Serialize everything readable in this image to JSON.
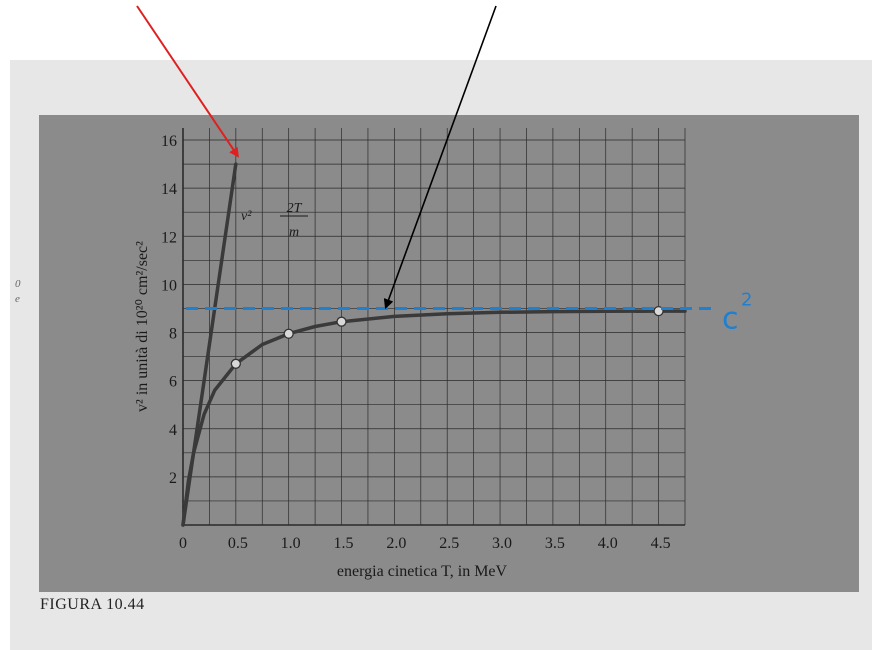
{
  "figure": {
    "caption": "FIGURA 10.44",
    "margin_marks": [
      "0",
      "e"
    ]
  },
  "colors": {
    "panel": "#8b8b8b",
    "curve": "#3a3a3a",
    "grid": "#2a2a2a",
    "red_arrow": "#e02020",
    "black_arrow": "#000000",
    "c2_line": "#1f7fd0"
  },
  "chart_data": {
    "type": "line",
    "title": "",
    "xlabel": "energia cinetica T, in MeV",
    "ylabel": "v² in unità di 10²⁰ cm²/sec²",
    "xlim": [
      0,
      4.75
    ],
    "ylim": [
      0,
      16.5
    ],
    "x_ticks": [
      0,
      0.5,
      1.0,
      1.5,
      2.0,
      2.5,
      3.0,
      3.5,
      4.0,
      4.5
    ],
    "x_tick_labels": [
      "0",
      "0.5",
      "1.0",
      "1.5",
      "2.0",
      "2.5",
      "3.0",
      "3.5",
      "4.0",
      "4.5"
    ],
    "y_ticks": [
      2,
      4,
      6,
      8,
      10,
      12,
      14,
      16
    ],
    "y_tick_labels": [
      "2",
      "4",
      "6",
      "8",
      "10",
      "12",
      "14",
      "16"
    ],
    "grid": true,
    "series": [
      {
        "label_main": "v²",
        "label_num": "2T",
        "label_den": "m",
        "x": [
          0,
          0.5
        ],
        "y": [
          0,
          15.0
        ]
      },
      {
        "x": [
          0,
          0.05,
          0.1,
          0.2,
          0.3,
          0.5,
          0.75,
          1.0,
          1.25,
          1.5,
          2.0,
          2.5,
          3.0,
          3.5,
          4.0,
          4.5,
          4.75
        ],
        "y": [
          0,
          1.8,
          3.0,
          4.6,
          5.6,
          6.7,
          7.5,
          7.95,
          8.25,
          8.45,
          8.67,
          8.78,
          8.84,
          8.87,
          8.88,
          8.89,
          8.89
        ]
      }
    ],
    "markers": [
      {
        "x": 0.5,
        "y": 6.7
      },
      {
        "x": 1.0,
        "y": 7.95
      },
      {
        "x": 1.5,
        "y": 8.45
      },
      {
        "x": 4.5,
        "y": 8.89
      }
    ],
    "reference_line": {
      "y": 9.0,
      "label_base": "c",
      "label_exp": "2"
    },
    "annotations": [
      {
        "type": "red-arrow",
        "target": {
          "x": 0.5,
          "y": 15.0
        }
      },
      {
        "type": "black-arrow",
        "target": {
          "x": 1.9,
          "y": 8.8
        }
      }
    ]
  }
}
